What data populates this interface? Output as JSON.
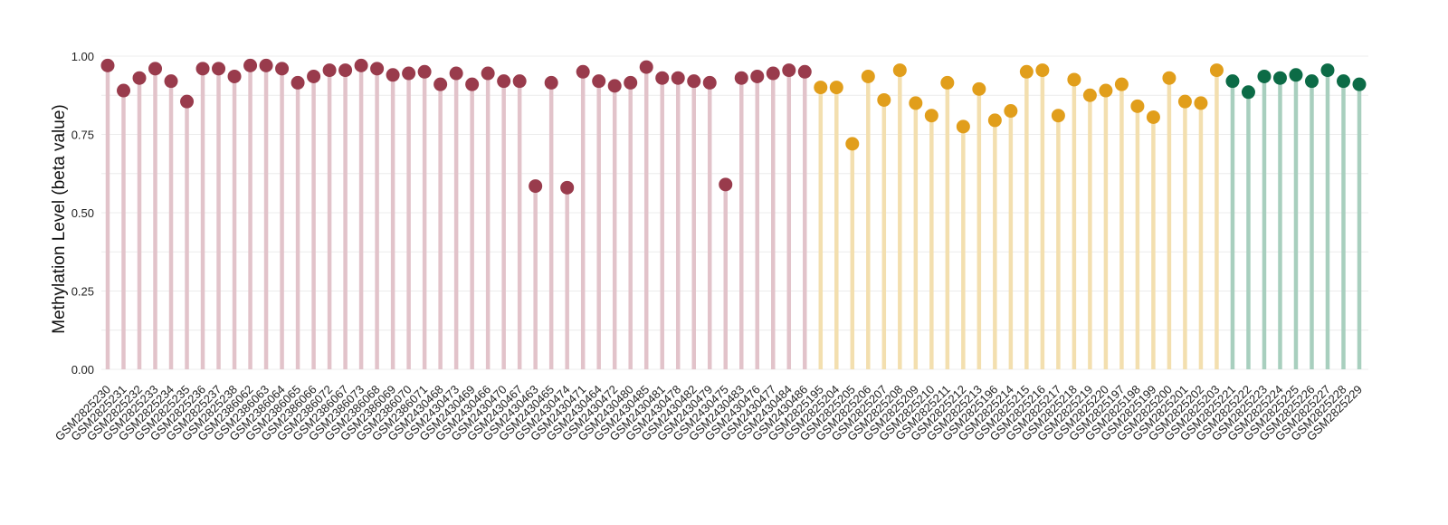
{
  "chart_data": {
    "type": "lollipop",
    "title": "",
    "xlabel": "",
    "ylabel": "Methylation Level (beta value)",
    "ylim": [
      0,
      1
    ],
    "yticks": [
      0,
      0.25,
      0.5,
      0.75,
      1
    ],
    "ytick_labels": [
      "0.00",
      "0.25",
      "0.50",
      "0.75",
      "1.00"
    ],
    "grid": true,
    "legend": "none",
    "group_colors": {
      "group1": {
        "point": "#993B4C",
        "stem": "#E2C3CA"
      },
      "group2": {
        "point": "#E19E1B",
        "stem": "#F3DFAF"
      },
      "group3": {
        "point": "#0C6B46",
        "stem": "#A8CFBE"
      }
    },
    "points": [
      {
        "label": "GSM2825230",
        "value": 0.97,
        "group": "group1"
      },
      {
        "label": "GSM2825231",
        "value": 0.89,
        "group": "group1"
      },
      {
        "label": "GSM2825232",
        "value": 0.93,
        "group": "group1"
      },
      {
        "label": "GSM2825233",
        "value": 0.96,
        "group": "group1"
      },
      {
        "label": "GSM2825234",
        "value": 0.92,
        "group": "group1"
      },
      {
        "label": "GSM2825235",
        "value": 0.855,
        "group": "group1"
      },
      {
        "label": "GSM2825236",
        "value": 0.96,
        "group": "group1"
      },
      {
        "label": "GSM2825237",
        "value": 0.96,
        "group": "group1"
      },
      {
        "label": "GSM2825238",
        "value": 0.935,
        "group": "group1"
      },
      {
        "label": "GSM2386062",
        "value": 0.97,
        "group": "group1"
      },
      {
        "label": "GSM2386063",
        "value": 0.97,
        "group": "group1"
      },
      {
        "label": "GSM2386064",
        "value": 0.96,
        "group": "group1"
      },
      {
        "label": "GSM2386065",
        "value": 0.915,
        "group": "group1"
      },
      {
        "label": "GSM2386066",
        "value": 0.935,
        "group": "group1"
      },
      {
        "label": "GSM2386072",
        "value": 0.955,
        "group": "group1"
      },
      {
        "label": "GSM2386067",
        "value": 0.955,
        "group": "group1"
      },
      {
        "label": "GSM2386073",
        "value": 0.97,
        "group": "group1"
      },
      {
        "label": "GSM2386068",
        "value": 0.96,
        "group": "group1"
      },
      {
        "label": "GSM2386069",
        "value": 0.94,
        "group": "group1"
      },
      {
        "label": "GSM2386070",
        "value": 0.945,
        "group": "group1"
      },
      {
        "label": "GSM2386071",
        "value": 0.95,
        "group": "group1"
      },
      {
        "label": "GSM2430468",
        "value": 0.91,
        "group": "group1"
      },
      {
        "label": "GSM2430473",
        "value": 0.945,
        "group": "group1"
      },
      {
        "label": "GSM2430469",
        "value": 0.91,
        "group": "group1"
      },
      {
        "label": "GSM2430466",
        "value": 0.945,
        "group": "group1"
      },
      {
        "label": "GSM2430470",
        "value": 0.92,
        "group": "group1"
      },
      {
        "label": "GSM2430467",
        "value": 0.92,
        "group": "group1"
      },
      {
        "label": "GSM2430463",
        "value": 0.585,
        "group": "group1"
      },
      {
        "label": "GSM2430465",
        "value": 0.915,
        "group": "group1"
      },
      {
        "label": "GSM2430474",
        "value": 0.58,
        "group": "group1"
      },
      {
        "label": "GSM2430471",
        "value": 0.95,
        "group": "group1"
      },
      {
        "label": "GSM2430464",
        "value": 0.92,
        "group": "group1"
      },
      {
        "label": "GSM2430472",
        "value": 0.905,
        "group": "group1"
      },
      {
        "label": "GSM2430480",
        "value": 0.915,
        "group": "group1"
      },
      {
        "label": "GSM2430485",
        "value": 0.965,
        "group": "group1"
      },
      {
        "label": "GSM2430481",
        "value": 0.93,
        "group": "group1"
      },
      {
        "label": "GSM2430478",
        "value": 0.93,
        "group": "group1"
      },
      {
        "label": "GSM2430482",
        "value": 0.92,
        "group": "group1"
      },
      {
        "label": "GSM2430479",
        "value": 0.915,
        "group": "group1"
      },
      {
        "label": "GSM2430475",
        "value": 0.59,
        "group": "group1"
      },
      {
        "label": "GSM2430483",
        "value": 0.93,
        "group": "group1"
      },
      {
        "label": "GSM2430476",
        "value": 0.935,
        "group": "group1"
      },
      {
        "label": "GSM2430477",
        "value": 0.945,
        "group": "group1"
      },
      {
        "label": "GSM2430484",
        "value": 0.955,
        "group": "group1"
      },
      {
        "label": "GSM2430486",
        "value": 0.95,
        "group": "group1"
      },
      {
        "label": "GSM2825195",
        "value": 0.9,
        "group": "group2"
      },
      {
        "label": "GSM2825204",
        "value": 0.9,
        "group": "group2"
      },
      {
        "label": "GSM2825205",
        "value": 0.72,
        "group": "group2"
      },
      {
        "label": "GSM2825206",
        "value": 0.935,
        "group": "group2"
      },
      {
        "label": "GSM2825207",
        "value": 0.86,
        "group": "group2"
      },
      {
        "label": "GSM2825208",
        "value": 0.955,
        "group": "group2"
      },
      {
        "label": "GSM2825209",
        "value": 0.85,
        "group": "group2"
      },
      {
        "label": "GSM2825210",
        "value": 0.81,
        "group": "group2"
      },
      {
        "label": "GSM2825211",
        "value": 0.915,
        "group": "group2"
      },
      {
        "label": "GSM2825212",
        "value": 0.775,
        "group": "group2"
      },
      {
        "label": "GSM2825213",
        "value": 0.895,
        "group": "group2"
      },
      {
        "label": "GSM2825196",
        "value": 0.795,
        "group": "group2"
      },
      {
        "label": "GSM2825214",
        "value": 0.825,
        "group": "group2"
      },
      {
        "label": "GSM2825215",
        "value": 0.95,
        "group": "group2"
      },
      {
        "label": "GSM2825216",
        "value": 0.955,
        "group": "group2"
      },
      {
        "label": "GSM2825217",
        "value": 0.81,
        "group": "group2"
      },
      {
        "label": "GSM2825218",
        "value": 0.925,
        "group": "group2"
      },
      {
        "label": "GSM2825219",
        "value": 0.875,
        "group": "group2"
      },
      {
        "label": "GSM2825220",
        "value": 0.89,
        "group": "group2"
      },
      {
        "label": "GSM2825197",
        "value": 0.91,
        "group": "group2"
      },
      {
        "label": "GSM2825198",
        "value": 0.84,
        "group": "group2"
      },
      {
        "label": "GSM2825199",
        "value": 0.805,
        "group": "group2"
      },
      {
        "label": "GSM2825200",
        "value": 0.93,
        "group": "group2"
      },
      {
        "label": "GSM2825201",
        "value": 0.855,
        "group": "group2"
      },
      {
        "label": "GSM2825202",
        "value": 0.85,
        "group": "group2"
      },
      {
        "label": "GSM2825203",
        "value": 0.955,
        "group": "group2"
      },
      {
        "label": "GSM2825221",
        "value": 0.92,
        "group": "group3"
      },
      {
        "label": "GSM2825222",
        "value": 0.885,
        "group": "group3"
      },
      {
        "label": "GSM2825223",
        "value": 0.935,
        "group": "group3"
      },
      {
        "label": "GSM2825224",
        "value": 0.93,
        "group": "group3"
      },
      {
        "label": "GSM2825225",
        "value": 0.94,
        "group": "group3"
      },
      {
        "label": "GSM2825226",
        "value": 0.92,
        "group": "group3"
      },
      {
        "label": "GSM2825227",
        "value": 0.955,
        "group": "group3"
      },
      {
        "label": "GSM2825228",
        "value": 0.92,
        "group": "group3"
      },
      {
        "label": "GSM2825229",
        "value": 0.91,
        "group": "group3"
      }
    ]
  }
}
